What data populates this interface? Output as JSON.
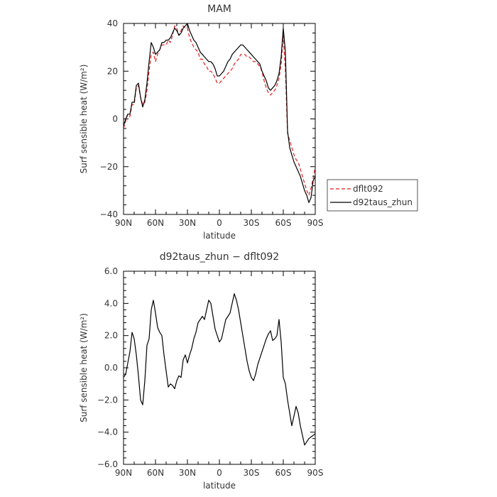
{
  "chart_data": [
    {
      "type": "line",
      "title": "MAM",
      "xlabel": "latitude",
      "ylabel": "Surf sensible heat (W/m²)",
      "xlim": [
        90,
        -90
      ],
      "ylim": [
        -40,
        40
      ],
      "xticks": [
        90,
        60,
        30,
        0,
        -30,
        -60,
        -90
      ],
      "xtick_labels": [
        "90N",
        "60N",
        "30N",
        "0",
        "30S",
        "60S",
        "90S"
      ],
      "yticks": [
        -40,
        -20,
        0,
        20,
        40
      ],
      "ytick_labels": [
        "−40",
        "−20",
        "0",
        "20",
        "40"
      ],
      "legend": {
        "placement": "outside-right"
      },
      "series": [
        {
          "name": "dflt092",
          "color": "#e02020",
          "dash": "dashed",
          "x": [
            90,
            88,
            86,
            84,
            82,
            80,
            78,
            76,
            74,
            72,
            70,
            68,
            66,
            64,
            62,
            60,
            58,
            56,
            54,
            52,
            50,
            48,
            46,
            44,
            42,
            40,
            38,
            36,
            34,
            32,
            30,
            28,
            26,
            24,
            22,
            20,
            18,
            16,
            14,
            12,
            10,
            8,
            6,
            4,
            2,
            0,
            -2,
            -4,
            -6,
            -8,
            -10,
            -12,
            -14,
            -16,
            -18,
            -20,
            -22,
            -24,
            -26,
            -28,
            -30,
            -32,
            -34,
            -36,
            -38,
            -40,
            -42,
            -44,
            -46,
            -48,
            -50,
            -52,
            -54,
            -56,
            -58,
            -60,
            -62,
            -64,
            -66,
            -68,
            -70,
            -72,
            -74,
            -76,
            -78,
            -80,
            -82,
            -84,
            -86,
            -88,
            -90
          ],
          "y": [
            -4,
            -1,
            2,
            1,
            6,
            6,
            13,
            14,
            9,
            6,
            7,
            12,
            20,
            27,
            28,
            24,
            27,
            29,
            31,
            31,
            31,
            33,
            32,
            35,
            39,
            38,
            35,
            37,
            39,
            38,
            38,
            34,
            32,
            30,
            29,
            28,
            25,
            25,
            23,
            22,
            20,
            20,
            19,
            17,
            15,
            15,
            16,
            17,
            18,
            19,
            20,
            21,
            23,
            24,
            25,
            27,
            27,
            27,
            26,
            26,
            25,
            24,
            24,
            23,
            22,
            20,
            16,
            13,
            11,
            10,
            11,
            12,
            14,
            17,
            23,
            35,
            20,
            -6,
            -9,
            -12,
            -15,
            -17,
            -18,
            -21,
            -24,
            -27,
            -30,
            -32,
            -29,
            -25,
            -20
          ]
        },
        {
          "name": "d92taus_zhun",
          "color": "#000000",
          "dash": "solid",
          "x": [
            90,
            88,
            86,
            84,
            82,
            80,
            78,
            76,
            74,
            72,
            70,
            68,
            66,
            64,
            62,
            60,
            58,
            56,
            54,
            52,
            50,
            48,
            46,
            44,
            42,
            40,
            38,
            36,
            34,
            32,
            30,
            28,
            26,
            24,
            22,
            20,
            18,
            16,
            14,
            12,
            10,
            8,
            6,
            4,
            2,
            0,
            -2,
            -4,
            -6,
            -8,
            -10,
            -12,
            -14,
            -16,
            -18,
            -20,
            -22,
            -24,
            -26,
            -28,
            -30,
            -32,
            -34,
            -36,
            -38,
            -40,
            -42,
            -44,
            -46,
            -48,
            -50,
            -52,
            -54,
            -56,
            -58,
            -60,
            -62,
            -64,
            -66,
            -68,
            -70,
            -72,
            -74,
            -76,
            -78,
            -80,
            -82,
            -84,
            -86,
            -88,
            -90
          ],
          "y": [
            -3,
            0,
            2,
            2,
            7,
            7,
            14,
            15,
            9,
            5,
            8,
            15,
            24,
            32,
            30,
            27,
            28,
            29,
            32,
            32,
            33,
            33,
            34,
            36,
            38,
            37,
            35,
            36,
            38,
            39,
            40,
            37,
            35,
            33,
            32,
            30,
            28,
            27,
            26,
            25,
            24,
            24,
            23,
            21,
            18,
            18,
            19,
            20,
            22,
            24,
            25,
            27,
            28,
            29,
            30,
            31,
            31,
            30,
            29,
            28,
            27,
            26,
            25,
            24,
            23,
            20,
            18,
            16,
            13,
            12,
            13,
            14,
            16,
            19,
            26,
            38,
            28,
            -5,
            -12,
            -15,
            -18,
            -20,
            -22,
            -24,
            -27,
            -30,
            -32,
            -35,
            -33,
            -26,
            -24
          ]
        }
      ]
    },
    {
      "type": "line",
      "title": "d92taus_zhun − dflt092",
      "xlabel": "latitude",
      "ylabel": "Surf sensible heat (W/m²)",
      "xlim": [
        90,
        -90
      ],
      "ylim": [
        -6,
        6
      ],
      "xticks": [
        90,
        60,
        30,
        0,
        -30,
        -60,
        -90
      ],
      "xtick_labels": [
        "90N",
        "60N",
        "30N",
        "0",
        "30S",
        "60S",
        "90S"
      ],
      "yticks": [
        -6,
        -4,
        -2,
        0,
        2,
        4,
        6
      ],
      "ytick_labels": [
        "−6.0",
        "−4.0",
        "−2.0",
        "0.0",
        "2.0",
        "4.0",
        "6.0"
      ],
      "series": [
        {
          "color": "#000000",
          "dash": "solid",
          "x": [
            90,
            88,
            86,
            84,
            82,
            80,
            78,
            76,
            74,
            72,
            70,
            68,
            66,
            64,
            62,
            60,
            58,
            56,
            54,
            52,
            50,
            48,
            46,
            44,
            42,
            40,
            38,
            36,
            34,
            32,
            30,
            28,
            26,
            24,
            22,
            20,
            18,
            16,
            14,
            12,
            10,
            8,
            6,
            4,
            2,
            0,
            -2,
            -4,
            -6,
            -8,
            -10,
            -12,
            -14,
            -16,
            -18,
            -20,
            -22,
            -24,
            -26,
            -28,
            -30,
            -32,
            -34,
            -36,
            -38,
            -40,
            -42,
            -44,
            -46,
            -48,
            -50,
            -52,
            -54,
            -56,
            -58,
            -60,
            -62,
            -64,
            -66,
            -68,
            -70,
            -72,
            -74,
            -76,
            -78,
            -80,
            -82,
            -84,
            -86,
            -88,
            -90
          ],
          "y": [
            -0.6,
            -0.4,
            0.3,
            1.0,
            2.2,
            1.8,
            0.8,
            -0.5,
            -2.0,
            -2.3,
            -0.8,
            1.4,
            1.8,
            3.6,
            4.2,
            3.4,
            2.5,
            2.2,
            2.0,
            0.8,
            -0.2,
            -1.2,
            -1.0,
            -1.1,
            -1.3,
            -0.8,
            -0.5,
            -0.6,
            0.5,
            0.8,
            0.3,
            0.8,
            1.2,
            1.8,
            2.2,
            2.8,
            3.0,
            3.2,
            3.0,
            3.6,
            4.2,
            4.0,
            3.2,
            2.4,
            2.0,
            1.6,
            1.8,
            2.4,
            3.0,
            3.2,
            3.4,
            4.0,
            4.6,
            4.2,
            3.6,
            2.8,
            2.0,
            1.2,
            0.4,
            -0.2,
            -0.6,
            -0.8,
            -0.4,
            0.2,
            0.6,
            1.0,
            1.4,
            1.8,
            2.1,
            2.3,
            1.7,
            1.8,
            2.0,
            3.0,
            1.6,
            -0.6,
            -1.0,
            -2.0,
            -2.8,
            -3.6,
            -3.0,
            -2.4,
            -2.8,
            -3.6,
            -4.2,
            -4.8,
            -4.6,
            -4.4,
            -4.3,
            -4.2,
            -4.1
          ]
        }
      ]
    }
  ]
}
